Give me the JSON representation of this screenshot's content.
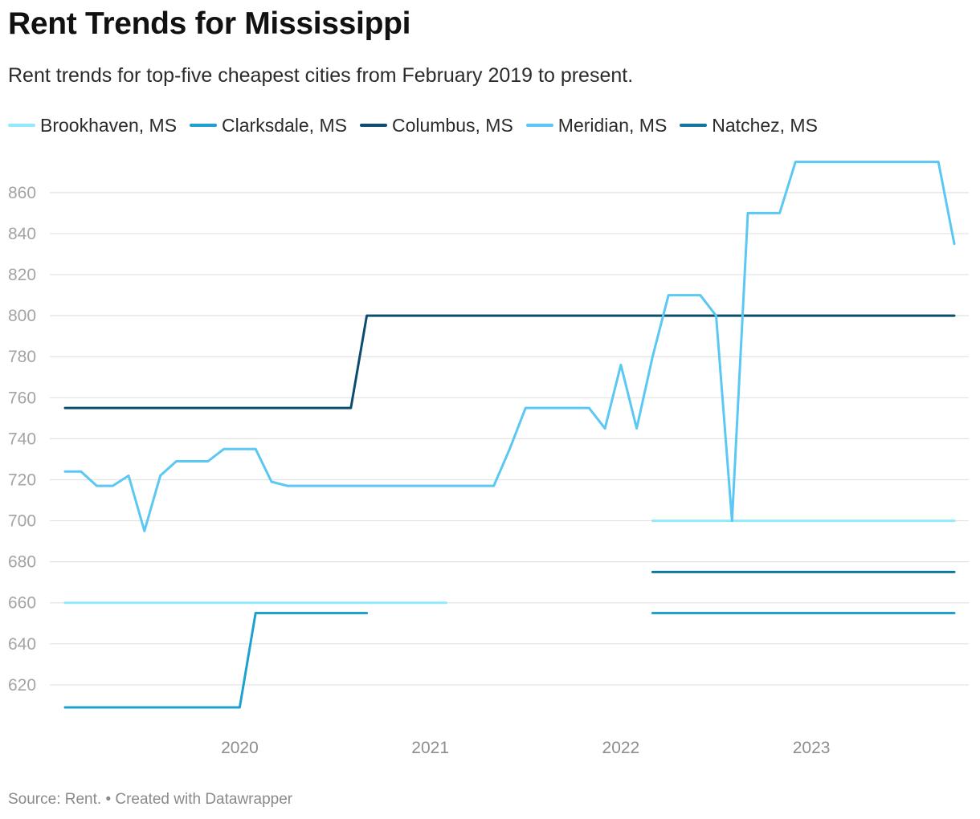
{
  "header": {
    "title": "Rent Trends for Mississippi",
    "subtitle": "Rent trends for top-five cheapest cities from February 2019 to present."
  },
  "footer": {
    "source": "Source: Rent. • Created with Datawrapper"
  },
  "chart_data": {
    "type": "line",
    "title": "Rent Trends for Mississippi",
    "subtitle": "Rent trends for top-five cheapest cities from February 2019 to present.",
    "xlabel": "",
    "ylabel": "",
    "xlim": [
      "2019-02",
      "2023-10"
    ],
    "ylim": [
      600,
      876
    ],
    "y_ticks": [
      620,
      640,
      660,
      680,
      700,
      720,
      740,
      760,
      780,
      800,
      820,
      840,
      860
    ],
    "x_ticks": [
      "2020",
      "2021",
      "2022",
      "2023"
    ],
    "grid": "horizontal",
    "legend": "top-left",
    "series": [
      {
        "name": "Brookhaven, MS",
        "color": "#90eafc",
        "segments": [
          [
            [
              "2019-02",
              660
            ],
            [
              "2021-02",
              660
            ]
          ],
          [
            [
              "2022-03",
              700
            ],
            [
              "2023-10",
              700
            ]
          ]
        ]
      },
      {
        "name": "Clarksdale, MS",
        "color": "#1ea1cf",
        "segments": [
          [
            [
              "2019-02",
              609
            ],
            [
              "2020-01",
              609
            ],
            [
              "2020-02",
              655
            ],
            [
              "2020-09",
              655
            ]
          ],
          [
            [
              "2022-03",
              655
            ],
            [
              "2023-10",
              655
            ]
          ]
        ]
      },
      {
        "name": "Columbus, MS",
        "color": "#0c4d6d",
        "segments": [
          [
            [
              "2019-02",
              755
            ],
            [
              "2020-08",
              755
            ],
            [
              "2020-09",
              800
            ],
            [
              "2023-10",
              800
            ]
          ]
        ]
      },
      {
        "name": "Meridian, MS",
        "color": "#5ac8f2",
        "segments": [
          [
            [
              "2019-02",
              724
            ],
            [
              "2019-03",
              724
            ],
            [
              "2019-04",
              717
            ],
            [
              "2019-05",
              717
            ],
            [
              "2019-06",
              722
            ],
            [
              "2019-07",
              695
            ],
            [
              "2019-08",
              722
            ],
            [
              "2019-09",
              729
            ],
            [
              "2019-10",
              729
            ],
            [
              "2019-11",
              729
            ],
            [
              "2019-12",
              735
            ],
            [
              "2020-01",
              735
            ],
            [
              "2020-02",
              735
            ],
            [
              "2020-03",
              719
            ],
            [
              "2020-04",
              717
            ],
            [
              "2020-05",
              717
            ],
            [
              "2020-06",
              717
            ],
            [
              "2020-07",
              717
            ],
            [
              "2020-08",
              717
            ],
            [
              "2020-09",
              717
            ],
            [
              "2020-10",
              717
            ],
            [
              "2020-11",
              717
            ],
            [
              "2020-12",
              717
            ],
            [
              "2021-01",
              717
            ],
            [
              "2021-02",
              717
            ],
            [
              "2021-03",
              717
            ],
            [
              "2021-04",
              717
            ],
            [
              "2021-05",
              717
            ],
            [
              "2021-06",
              735
            ],
            [
              "2021-07",
              755
            ],
            [
              "2021-08",
              755
            ],
            [
              "2021-09",
              755
            ],
            [
              "2021-10",
              755
            ],
            [
              "2021-11",
              755
            ],
            [
              "2021-12",
              745
            ],
            [
              "2022-01",
              776
            ],
            [
              "2022-02",
              745
            ],
            [
              "2022-03",
              780
            ],
            [
              "2022-04",
              810
            ],
            [
              "2022-05",
              810
            ],
            [
              "2022-06",
              810
            ],
            [
              "2022-07",
              800
            ],
            [
              "2022-08",
              700
            ],
            [
              "2022-09",
              850
            ],
            [
              "2022-10",
              850
            ],
            [
              "2022-11",
              850
            ],
            [
              "2022-12",
              875
            ],
            [
              "2023-01",
              875
            ],
            [
              "2023-02",
              875
            ],
            [
              "2023-03",
              875
            ],
            [
              "2023-04",
              875
            ],
            [
              "2023-05",
              875
            ],
            [
              "2023-06",
              875
            ],
            [
              "2023-07",
              875
            ],
            [
              "2023-08",
              875
            ],
            [
              "2023-09",
              875
            ],
            [
              "2023-10",
              835
            ]
          ]
        ]
      },
      {
        "name": "Natchez, MS",
        "color": "#1374a0",
        "segments": [
          [
            [
              "2022-03",
              675
            ],
            [
              "2023-10",
              675
            ]
          ]
        ]
      }
    ]
  }
}
